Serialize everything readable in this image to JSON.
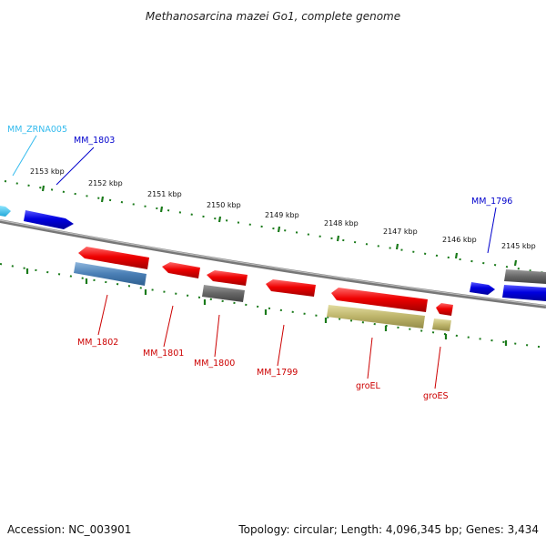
{
  "title": "Methanosarcina mazei Go1, complete genome",
  "footer": {
    "accession": "Accession: NC_003901",
    "summary": "Topology: circular; Length: 4,096,345 bp; Genes: 3,434"
  },
  "colors": {
    "forward_gene": "#0000dd",
    "reverse_gene": "#ee0000",
    "rna": "#33ccee",
    "label_forward": "#0000cc",
    "label_reverse": "#cc0000",
    "label_rna": "#33bbee",
    "backbone": "#888888",
    "tick": "#1a7a1a",
    "cds_blue": "#4a7fb5",
    "cds_grey": "#666666",
    "cds_khaki": "#bdb46a"
  },
  "kbp_labels": [
    "2153 kbp",
    "2152 kbp",
    "2151 kbp",
    "2150 kbp",
    "2149 kbp",
    "2148 kbp",
    "2147 kbp",
    "2146 kbp",
    "2145 kbp"
  ],
  "genes": [
    {
      "name": "MM_ZRNA005",
      "type": "rna"
    },
    {
      "name": "MM_1803",
      "type": "forward"
    },
    {
      "name": "MM_1796",
      "type": "forward"
    },
    {
      "name": "MM_1802",
      "type": "reverse"
    },
    {
      "name": "MM_1801",
      "type": "reverse"
    },
    {
      "name": "MM_1800",
      "type": "reverse"
    },
    {
      "name": "MM_1799",
      "type": "reverse"
    },
    {
      "name": "groEL",
      "type": "reverse"
    },
    {
      "name": "groES",
      "type": "reverse"
    }
  ]
}
